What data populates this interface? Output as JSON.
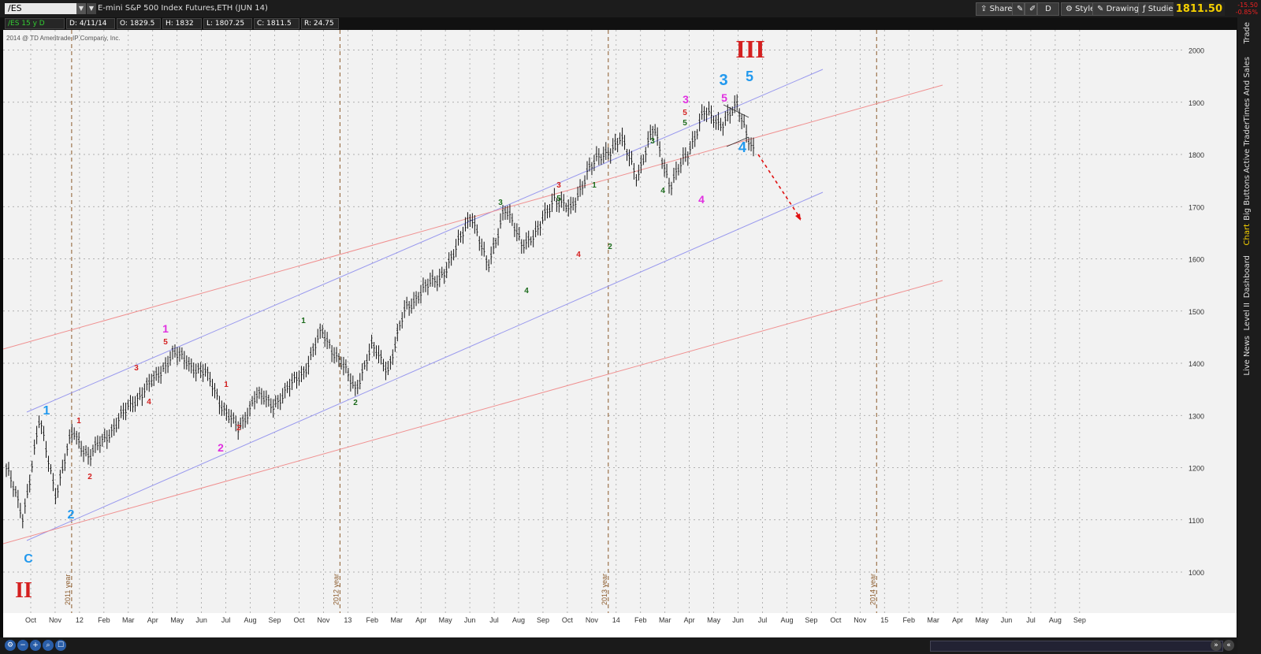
{
  "toolbar": {
    "symbol": "/ES",
    "description": "E-mini S&P 500 Index Futures,ETH (JUN 14)",
    "share": "Share",
    "style": "Style",
    "drawings": "Drawings",
    "studies": "Studies",
    "timeframe": "D",
    "last_price": "1811.50",
    "change1": "-15.50",
    "change2": "-0.85%"
  },
  "info": {
    "symbol": "/ES 15 y D",
    "date": "D: 4/11/14",
    "open": "O: 1829.5",
    "high": "H: 1832",
    "low": "L: 1807.25",
    "close": "C: 1811.5",
    "range": "R: 24.75"
  },
  "copyright": "2014 @ TD Ameritrade IP Company, Inc.",
  "sidebar": [
    "Trade",
    "Times And Sales",
    "Active Trader",
    "Big Buttons",
    "Chart",
    "Dashboard",
    "Level II",
    "Live News"
  ],
  "chart_data": {
    "type": "candlestick",
    "title": "E-mini S&P 500 Index Futures,ETH (JUN 14)",
    "ylim": [
      1000,
      2000
    ],
    "y_ticks": [
      "2000",
      "1900",
      "1800",
      "1700",
      "1600",
      "1500",
      "1400",
      "1300",
      "1200",
      "1100",
      "1000"
    ],
    "x_ticks": [
      "Oct",
      "Nov",
      "12",
      "Feb",
      "Mar",
      "Apr",
      "May",
      "Jun",
      "Jul",
      "Aug",
      "Sep",
      "Oct",
      "Nov",
      "13",
      "Feb",
      "Mar",
      "Apr",
      "May",
      "Jun",
      "Jul",
      "Aug",
      "Sep",
      "Oct",
      "Nov",
      "14",
      "Feb",
      "Mar",
      "Apr",
      "May",
      "Jun",
      "Jul",
      "Aug",
      "Sep",
      "Oct",
      "Nov",
      "15",
      "Feb",
      "Mar",
      "Apr",
      "May",
      "Jun",
      "Jul",
      "Aug",
      "Sep"
    ],
    "year_markers": [
      "2011 year",
      "2012 year",
      "2013 year",
      "2014 year"
    ],
    "series": [
      {
        "values": [
          1200,
          1105,
          1290,
          1150,
          1270,
          1220,
          1260,
          1300,
          1340,
          1370,
          1420,
          1400,
          1380,
          1320,
          1270,
          1340,
          1320,
          1350,
          1390,
          1460,
          1410,
          1350,
          1430,
          1390,
          1500,
          1540,
          1560,
          1610,
          1690,
          1580,
          1700,
          1630,
          1650,
          1720,
          1690,
          1770,
          1800,
          1830,
          1760,
          1850,
          1740,
          1800,
          1880,
          1860,
          1890,
          1812
        ]
      }
    ],
    "wave_labels": [
      {
        "text": "II",
        "color": "#d42020"
      },
      {
        "text": "C",
        "color": "#2299ee"
      },
      {
        "text": "1",
        "color": "#2299ee"
      },
      {
        "text": "2",
        "color": "#2299ee"
      },
      {
        "text": "1",
        "color": "#d42020"
      },
      {
        "text": "2",
        "color": "#d42020"
      },
      {
        "text": "3",
        "color": "#d42020"
      },
      {
        "text": "4",
        "color": "#d42020"
      },
      {
        "text": "5",
        "color": "#d42020"
      },
      {
        "text": "1",
        "color": "#e030e0"
      },
      {
        "text": "1",
        "color": "#d42020"
      },
      {
        "text": "2",
        "color": "#d42020"
      },
      {
        "text": "2",
        "color": "#e030e0"
      },
      {
        "text": "1",
        "color": "#1a6a1a"
      },
      {
        "text": "2",
        "color": "#1a6a1a"
      },
      {
        "text": "3",
        "color": "#1a6a1a"
      },
      {
        "text": "4",
        "color": "#1a6a1a"
      },
      {
        "text": "5",
        "color": "#1a6a1a"
      },
      {
        "text": "3",
        "color": "#d42020"
      },
      {
        "text": "4",
        "color": "#d42020"
      },
      {
        "text": "1",
        "color": "#1a6a1a"
      },
      {
        "text": "2",
        "color": "#1a6a1a"
      },
      {
        "text": "3",
        "color": "#1a6a1a"
      },
      {
        "text": "4",
        "color": "#1a6a1a"
      },
      {
        "text": "5",
        "color": "#1a6a1a"
      },
      {
        "text": "5",
        "color": "#d42020"
      },
      {
        "text": "3",
        "color": "#e030e0"
      },
      {
        "text": "4",
        "color": "#e030e0"
      },
      {
        "text": "5",
        "color": "#e030e0"
      },
      {
        "text": "3",
        "color": "#2299ee"
      },
      {
        "text": "5",
        "color": "#2299ee"
      },
      {
        "text": "4",
        "color": "#2299ee"
      },
      {
        "text": "III",
        "color": "#d42020"
      }
    ]
  }
}
